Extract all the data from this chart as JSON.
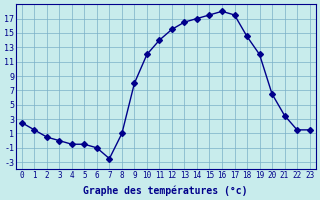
{
  "hours": [
    0,
    1,
    2,
    3,
    4,
    5,
    6,
    7,
    8,
    9,
    10,
    11,
    12,
    13,
    14,
    15,
    16,
    17,
    18,
    19,
    20,
    21,
    22,
    23
  ],
  "temps": [
    2.5,
    1.5,
    0.5,
    0.0,
    -0.5,
    -0.5,
    -1.0,
    -2.5,
    1.0,
    8.0,
    12.0,
    14.0,
    15.5,
    16.5,
    17.0,
    17.5,
    18.0,
    17.5,
    14.5,
    12.0,
    6.5,
    3.5,
    1.5,
    1.5
  ],
  "line_color": "#00008B",
  "marker": "D",
  "marker_size": 3,
  "bg_color": "#c8ecec",
  "grid_color": "#7ab0c8",
  "xlabel": "Graphe des températures (°c)",
  "xlabel_color": "#00008B",
  "ylabel_ticks": [
    -3,
    -1,
    1,
    3,
    5,
    7,
    9,
    11,
    13,
    15,
    17
  ],
  "ylim": [
    -4,
    19
  ],
  "xlim": [
    -0.5,
    23.5
  ],
  "xtick_labels": [
    "0",
    "1",
    "2",
    "3",
    "4",
    "5",
    "6",
    "7",
    "8",
    "9",
    "10",
    "11",
    "12",
    "13",
    "14",
    "15",
    "16",
    "17",
    "18",
    "19",
    "20",
    "21",
    "22",
    "23"
  ]
}
